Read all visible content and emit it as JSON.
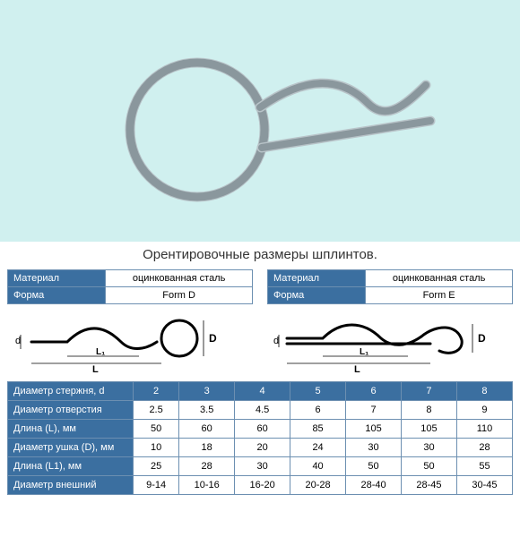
{
  "caption": "Орентировочные размеры шплинтов.",
  "forms": [
    {
      "material_label": "Материал",
      "material": "оцинкованная сталь",
      "form_label": "Форма",
      "form": "Form  D"
    },
    {
      "material_label": "Материал",
      "material": "оцинкованная сталь",
      "form_label": "Форма",
      "form": "Form E"
    }
  ],
  "diagram_labels": {
    "d": "d",
    "D": "D",
    "L": "L",
    "L1": "L₁"
  },
  "main_table": {
    "header": [
      "Диаметр стержня, d",
      "2",
      "3",
      "4",
      "5",
      "6",
      "7",
      "8"
    ],
    "rows": [
      {
        "label": "Диаметр отверстия",
        "cells": [
          "2.5",
          "3.5",
          "4.5",
          "6",
          "7",
          "8",
          "9"
        ]
      },
      {
        "label": "Длина (L), мм",
        "cells": [
          "50",
          "60",
          "60",
          "85",
          "105",
          "105",
          "110"
        ]
      },
      {
        "label": "Диаметр ушка (D), мм",
        "cells": [
          "10",
          "18",
          "20",
          "24",
          "30",
          "30",
          "28"
        ]
      },
      {
        "label": "Длина (L1), мм",
        "cells": [
          "25",
          "28",
          "30",
          "40",
          "50",
          "50",
          "55"
        ]
      },
      {
        "label": "Диаметр внешний",
        "cells": [
          "9-14",
          "10-16",
          "16-20",
          "20-28",
          "28-40",
          "28-45",
          "30-45"
        ]
      }
    ]
  },
  "colors": {
    "header_bg": "#3b6fa0",
    "border": "#6c8fb1",
    "photo_bg": "#d0f0ef"
  }
}
